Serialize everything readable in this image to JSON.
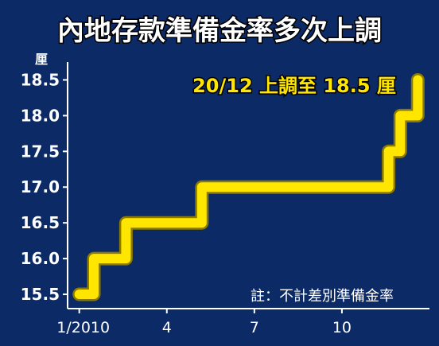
{
  "chart_data": {
    "type": "line",
    "title": "內地存款準備金率多次上調",
    "ylabel": "厘",
    "xlabel": "",
    "ylim": [
      15.3,
      18.75
    ],
    "yticks": [
      15.5,
      16.0,
      16.5,
      17.0,
      17.5,
      18.0,
      18.5
    ],
    "xticks": [
      {
        "month": 1,
        "label": "1/2010"
      },
      {
        "month": 4,
        "label": "4"
      },
      {
        "month": 7,
        "label": "7"
      },
      {
        "month": 10,
        "label": "10"
      }
    ],
    "xlim": [
      0.6,
      13.0
    ],
    "series": [
      {
        "values": [
          {
            "x": 1.0,
            "y": 15.5
          },
          {
            "x": 1.5,
            "y": 15.5
          },
          {
            "x": 1.5,
            "y": 16.0
          },
          {
            "x": 2.6,
            "y": 16.0
          },
          {
            "x": 2.6,
            "y": 16.5
          },
          {
            "x": 5.2,
            "y": 16.5
          },
          {
            "x": 5.2,
            "y": 17.0
          },
          {
            "x": 11.6,
            "y": 17.0
          },
          {
            "x": 11.6,
            "y": 17.5
          },
          {
            "x": 12.0,
            "y": 17.5
          },
          {
            "x": 12.0,
            "y": 18.0
          },
          {
            "x": 12.6,
            "y": 18.0
          },
          {
            "x": 12.6,
            "y": 18.5
          }
        ]
      }
    ],
    "annotation": "20/12 上調至 18.5 厘",
    "note": "註：不計差別準備金率",
    "colors": {
      "background": "#0b2a66",
      "line": "#ffe600",
      "line_edge": "#8a7a00",
      "text": "#ffffff",
      "annotation": "#ffe600"
    }
  }
}
